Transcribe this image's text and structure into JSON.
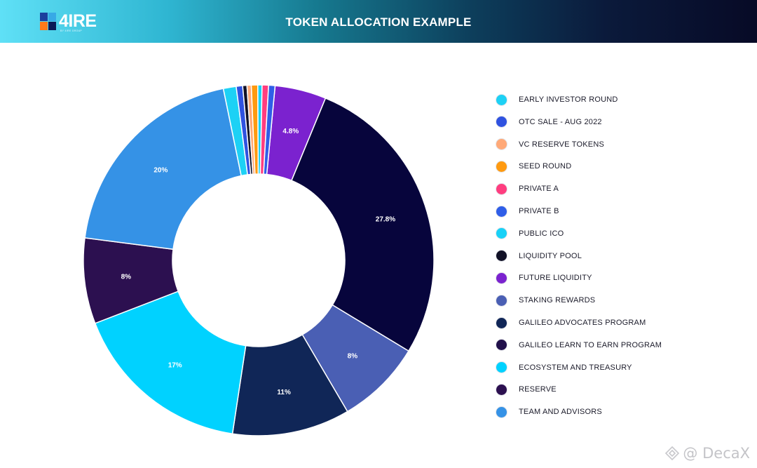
{
  "header": {
    "title": "TOKEN ALLOCATION EXAMPLE",
    "logo_text": "4IRE",
    "logo_subtext": "BY 4IRE GROUP",
    "gradient_colors": [
      "#5fe0f6",
      "#16798f",
      "#070a26"
    ]
  },
  "chart_data": {
    "type": "pie",
    "donut": true,
    "title": "",
    "slices": [
      {
        "label": "FUTURE LIQUIDITY",
        "value": 4.8,
        "value_label": "4.8%",
        "color": "#7b22cf"
      },
      {
        "label": "LIQUIDITY POOL",
        "value": 27.8,
        "value_label": "27.8%",
        "color": "#07053c"
      },
      {
        "label": "STAKING REWARDS",
        "value": 8,
        "value_label": "8%",
        "color": "#4a5fb4"
      },
      {
        "label": "GALILEO ADVOCATES PROGRAM",
        "value": 11,
        "value_label": "11%",
        "color": "#102657"
      },
      {
        "label": "ECOSYSTEM AND TREASURY",
        "value": 17,
        "value_label": "17%",
        "color": "#00d2ff"
      },
      {
        "label": "RESERVE",
        "value": 8,
        "value_label": "8%",
        "color": "#2c1050"
      },
      {
        "label": "TEAM AND ADVISORS",
        "value": 20,
        "value_label": "20%",
        "color": "#3592e6"
      },
      {
        "label": "EARLY INVESTOR ROUND",
        "value": 1.2,
        "value_label": "",
        "color": "#1dd1f5"
      },
      {
        "label": "OTC SALE - AUG 2022",
        "value": 0.6,
        "value_label": "",
        "color": "#2f52e0"
      },
      {
        "label": "LIQUIDITY POOL",
        "value": 0.4,
        "value_label": "",
        "color": "#111126"
      },
      {
        "label": "VC RESERVE TOKENS",
        "value": 0.4,
        "value_label": "",
        "color": "#ffa978"
      },
      {
        "label": "SEED ROUND",
        "value": 0.6,
        "value_label": "",
        "color": "#ff9a10"
      },
      {
        "label": "PUBLIC ICO",
        "value": 0.4,
        "value_label": "",
        "color": "#18d1f7"
      },
      {
        "label": "PRIVATE A",
        "value": 0.6,
        "value_label": "",
        "color": "#ff3d7f"
      },
      {
        "label": "PRIVATE B",
        "value": 0.6,
        "value_label": "",
        "color": "#2f5ee8"
      }
    ],
    "legend_position": "right"
  },
  "legend": {
    "items": [
      {
        "label": "EARLY INVESTOR ROUND",
        "color": "#1dd1f5"
      },
      {
        "label": "OTC SALE - AUG 2022",
        "color": "#2f52e0"
      },
      {
        "label": "VC RESERVE TOKENS",
        "color": "#ffa978"
      },
      {
        "label": "SEED ROUND",
        "color": "#ff9a10"
      },
      {
        "label": "PRIVATE A",
        "color": "#ff3d7f"
      },
      {
        "label": "PRIVATE B",
        "color": "#2f5ee8"
      },
      {
        "label": "PUBLIC ICO",
        "color": "#18d1f7"
      },
      {
        "label": "LIQUIDITY POOL",
        "color": "#111126"
      },
      {
        "label": "FUTURE LIQUIDITY",
        "color": "#7b22cf"
      },
      {
        "label": "STAKING REWARDS",
        "color": "#4a5fb4"
      },
      {
        "label": "GALILEO ADVOCATES PROGRAM",
        "color": "#102657"
      },
      {
        "label": "GALILEO LEARN TO EARN PROGRAM",
        "color": "#21104a"
      },
      {
        "label": "ECOSYSTEM AND TREASURY",
        "color": "#00d2ff"
      },
      {
        "label": "RESERVE",
        "color": "#2c1050"
      },
      {
        "label": "TEAM AND ADVISORS",
        "color": "#3592e6"
      }
    ]
  },
  "watermark": {
    "text": "@ DecaX",
    "icon": "binance-diamond-icon"
  }
}
